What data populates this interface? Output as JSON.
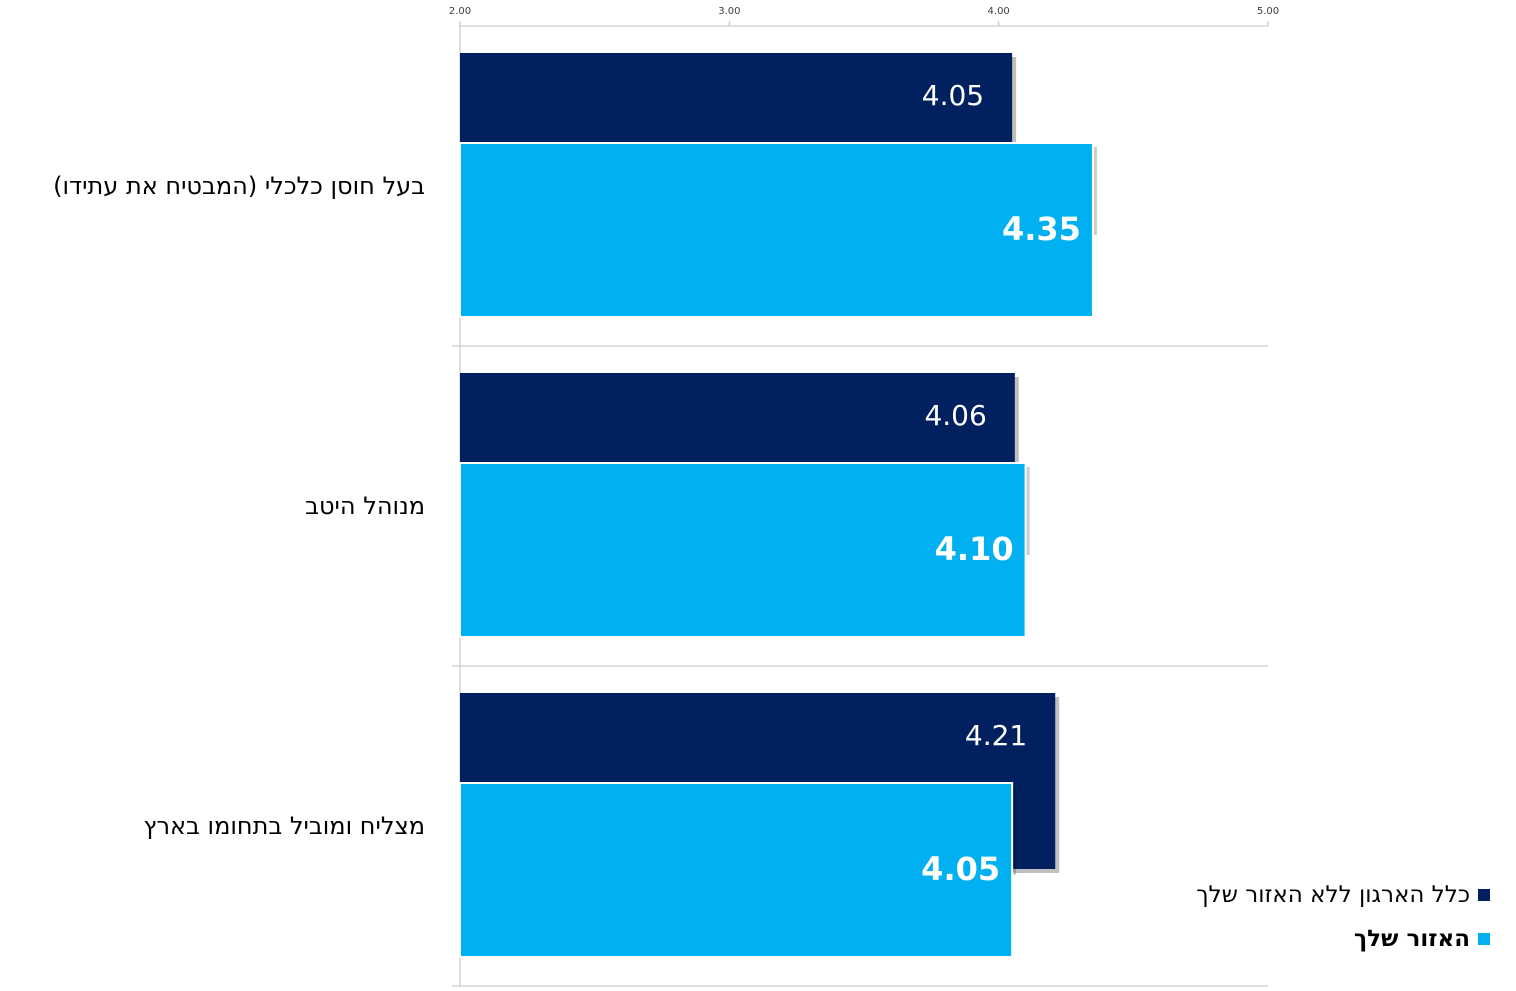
{
  "chart_data": {
    "type": "bar",
    "orientation": "horizontal",
    "categories": [
      "בעל חוסן כלכלי (המבטיח את עתידו)",
      "מנוהל היטב",
      "מצליח ומוביל בתחומו בארץ"
    ],
    "series": [
      {
        "name": "כלל הארגון ללא האזור שלך",
        "values": [
          4.05,
          4.06,
          4.21
        ],
        "color": "#002060",
        "label_bold": false
      },
      {
        "name": "האזור שלך",
        "values": [
          4.35,
          4.1,
          4.05
        ],
        "color": "#00B0F0",
        "label_bold": true
      }
    ],
    "xlim": [
      2.0,
      5.0
    ],
    "xticks": [
      "2.00",
      "3.00",
      "4.00",
      "5.00"
    ],
    "xaxis_position": "top",
    "grid": true,
    "legend_position": "bottom-right"
  },
  "legend": {
    "items": [
      {
        "label": "כלל הארגון ללא האזור שלך",
        "color": "#002060"
      },
      {
        "label": "האזור שלך",
        "color": "#00B0F0"
      }
    ]
  }
}
